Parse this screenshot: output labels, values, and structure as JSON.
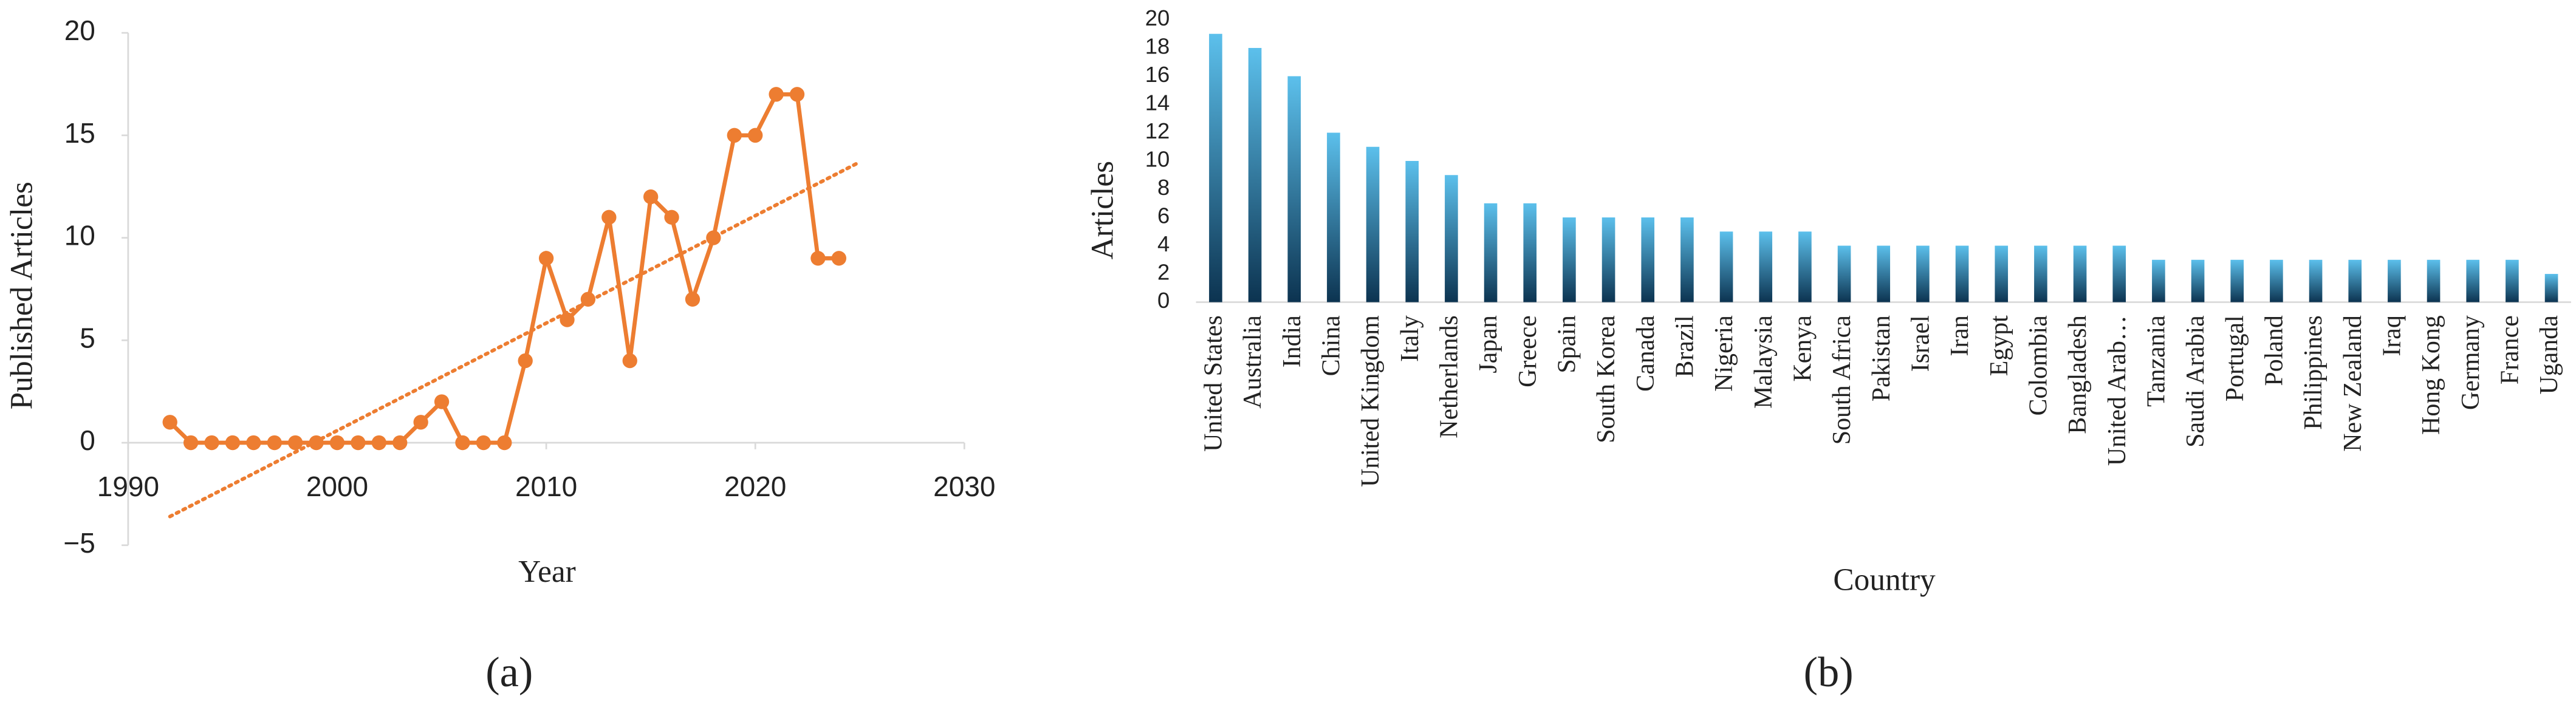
{
  "chart_data": [
    {
      "type": "line",
      "label": "(a)",
      "x_label": "Year",
      "y_label": "Published Articles",
      "xlim": [
        1990,
        2030
      ],
      "xticks": [
        1990,
        2000,
        2010,
        2020,
        2030
      ],
      "ylim": [
        -5,
        20
      ],
      "yticks": [
        {
          "value": -5,
          "label": "−5"
        },
        0,
        5,
        10,
        15,
        20
      ],
      "grid": false,
      "color": "#ed7d31",
      "x": [
        1992,
        1993,
        1994,
        1995,
        1996,
        1997,
        1998,
        1999,
        2000,
        2001,
        2002,
        2003,
        2004,
        2005,
        2006,
        2007,
        2008,
        2009,
        2010,
        2011,
        2012,
        2013,
        2014,
        2015,
        2016,
        2017,
        2018,
        2019,
        2020,
        2021,
        2022,
        2023,
        2024
      ],
      "values": [
        1,
        0,
        0,
        0,
        0,
        0,
        0,
        0,
        0,
        0,
        0,
        0,
        1,
        2,
        0,
        0,
        0,
        4,
        9,
        6,
        7,
        11,
        4,
        12,
        11,
        7,
        10,
        15,
        15,
        17,
        17,
        9,
        9
      ],
      "trendline": {
        "x": [
          1992,
          2025
        ],
        "values": [
          -3.6,
          13.7
        ],
        "color": "#ed7d31"
      }
    },
    {
      "type": "bar",
      "label": "(b)",
      "x_label": "Country",
      "y_label": "Articles",
      "ylim": [
        0,
        20
      ],
      "yticks": [
        0,
        2,
        4,
        6,
        8,
        10,
        12,
        14,
        16,
        18,
        20
      ],
      "grid": false,
      "color": [
        "#5cc0ec",
        "#0c3350"
      ],
      "categories": [
        "United States",
        "Australia",
        "India",
        "China",
        "United Kingdom",
        "Italy",
        "Netherlands",
        "Japan",
        "Greece",
        "Spain",
        "South Korea",
        "Canada",
        "Brazil",
        "Nigeria",
        "Malaysia",
        "Kenya",
        "South Africa",
        "Pakistan",
        "Israel",
        "Iran",
        "Egypt",
        "Colombia",
        "Bangladesh",
        "United Arab…",
        "Tanzania",
        "Saudi Arabia",
        "Portugal",
        "Poland",
        "Philippines",
        "New Zealand",
        "Iraq",
        "Hong Kong",
        "Germany",
        "France",
        "Uganda"
      ],
      "values": [
        19,
        18,
        16,
        12,
        11,
        10,
        9,
        7,
        7,
        6,
        6,
        6,
        6,
        5,
        5,
        5,
        4,
        4,
        4,
        4,
        4,
        4,
        4,
        4,
        3,
        3,
        3,
        3,
        3,
        3,
        3,
        3,
        3,
        3,
        2
      ]
    }
  ]
}
